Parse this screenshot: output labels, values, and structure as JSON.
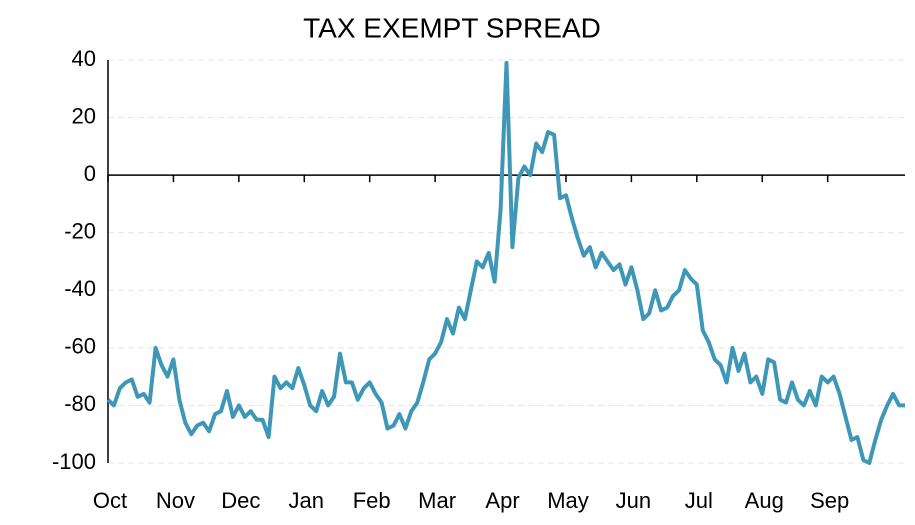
{
  "chart_data": {
    "type": "line",
    "title": "TAX EXEMPT SPREAD",
    "categories": [
      "Oct",
      null,
      null,
      null,
      null,
      null,
      null,
      null,
      null,
      null,
      null,
      "Nov",
      null,
      null,
      null,
      null,
      null,
      null,
      null,
      null,
      null,
      null,
      "Dec",
      null,
      null,
      null,
      null,
      null,
      null,
      null,
      null,
      null,
      null,
      "Jan",
      null,
      null,
      null,
      null,
      null,
      null,
      null,
      null,
      null,
      null,
      "Feb",
      null,
      null,
      null,
      null,
      null,
      null,
      null,
      null,
      null,
      null,
      "Mar",
      null,
      null,
      null,
      null,
      null,
      null,
      null,
      null,
      null,
      null,
      "Apr",
      null,
      null,
      null,
      null,
      null,
      null,
      null,
      null,
      null,
      null,
      "May",
      null,
      null,
      null,
      null,
      null,
      null,
      null,
      null,
      null,
      null,
      "Jun",
      null,
      null,
      null,
      null,
      null,
      null,
      null,
      null,
      null,
      null,
      "Jul",
      null,
      null,
      null,
      null,
      null,
      null,
      null,
      null,
      null,
      null,
      "Aug",
      null,
      null,
      null,
      null,
      null,
      null,
      null,
      null,
      null,
      null,
      "Sep",
      null,
      null,
      null,
      null,
      null,
      null,
      null,
      null,
      null,
      null,
      null,
      null,
      null
    ],
    "series": [
      {
        "name": "Tax Exempt Spread",
        "color": "#3f97b8",
        "values": [
          -78,
          -80,
          -74,
          -72,
          -71,
          -77,
          -76,
          -79,
          -60,
          -66,
          -70,
          -64,
          -78,
          -86,
          -90,
          -87,
          -86,
          -89,
          -83,
          -82,
          -75,
          -84,
          -80,
          -84,
          -82,
          -85,
          -85,
          -91,
          -70,
          -74,
          -72,
          -74,
          -67,
          -73,
          -80,
          -82,
          -75,
          -80,
          -77,
          -62,
          -72,
          -72,
          -78,
          -74,
          -72,
          -76,
          -79,
          -88,
          -87,
          -83,
          -88,
          -82,
          -79,
          -72,
          -64,
          -62,
          -58,
          -50,
          -55,
          -46,
          -50,
          -40,
          -30,
          -32,
          -27,
          -37,
          -12,
          39,
          -25,
          -1,
          3,
          0,
          11,
          8,
          15,
          14,
          -8,
          -7,
          -15,
          -22,
          -28,
          -25,
          -32,
          -27,
          -30,
          -33,
          -31,
          -38,
          -32,
          -40,
          -50,
          -48,
          -40,
          -47,
          -46,
          -42,
          -40,
          -33,
          -36,
          -38,
          -54,
          -58,
          -64,
          -66,
          -72,
          -60,
          -68,
          -62,
          -72,
          -70,
          -76,
          -64,
          -65,
          -78,
          -79,
          -72,
          -78,
          -80,
          -75,
          -80,
          -70,
          -72,
          -70,
          -76,
          -84,
          -92,
          -91,
          -99,
          -100,
          -92,
          -85,
          -80,
          -76,
          -80,
          -80
        ]
      }
    ],
    "ylim": [
      -100,
      40
    ],
    "yticks": [
      -100,
      -80,
      -60,
      -40,
      -20,
      0,
      20,
      40
    ],
    "grid": true
  }
}
